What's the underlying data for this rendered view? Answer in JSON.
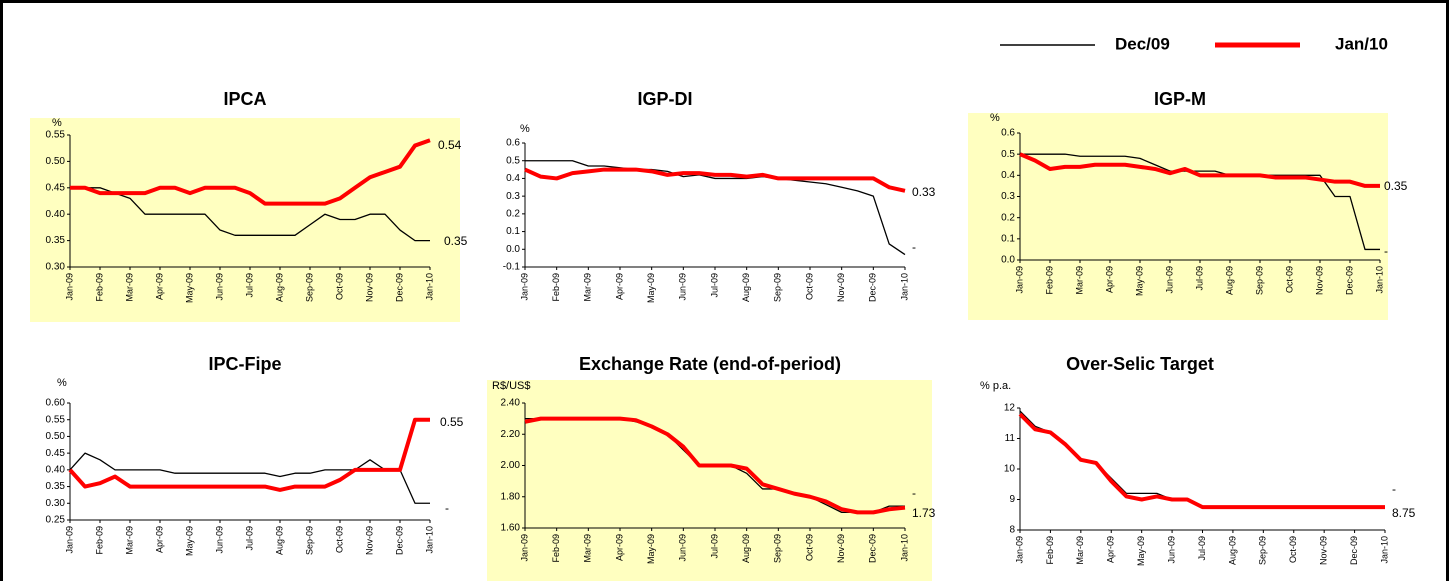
{
  "chart_data": [
    {
      "type": "line",
      "title": "IPCA",
      "y_label": "%",
      "categories": [
        "Jan-09",
        null,
        "Feb-09",
        null,
        "Mar-09",
        null,
        "Apr-09",
        null,
        "May-09",
        null,
        "Jun-09",
        null,
        "Jul-09",
        null,
        "Aug-09",
        null,
        "Sep-09",
        null,
        "Oct-09",
        null,
        "Nov-09",
        null,
        "Dec-09",
        null,
        "Jan-10"
      ],
      "series": [
        {
          "name": "Dec/09",
          "color": "#000000",
          "values": [
            0.45,
            0.45,
            0.45,
            0.44,
            0.43,
            0.4,
            0.4,
            0.4,
            0.4,
            0.4,
            0.37,
            0.36,
            0.36,
            0.36,
            0.36,
            0.36,
            0.38,
            0.4,
            0.39,
            0.39,
            0.4,
            0.4,
            0.37,
            0.35,
            0.35
          ]
        },
        {
          "name": "Jan/10",
          "color": "#ff0000",
          "values": [
            0.45,
            0.45,
            0.44,
            0.44,
            0.44,
            0.44,
            0.45,
            0.45,
            0.44,
            0.45,
            0.45,
            0.45,
            0.44,
            0.42,
            0.42,
            0.42,
            0.42,
            0.42,
            0.43,
            0.45,
            0.47,
            0.48,
            0.49,
            0.53,
            0.54
          ]
        }
      ],
      "ylim": [
        0.3,
        0.55
      ],
      "yticks": [
        {
          "value": 0.3,
          "label": "0.30"
        },
        0.35,
        {
          "value": 0.4,
          "label": "0.40"
        },
        0.45,
        {
          "value": 0.5,
          "label": "0.50"
        },
        0.55
      ],
      "annotations": [
        "0.54",
        "0.35"
      ]
    },
    {
      "type": "line",
      "title": "IGP-DI",
      "y_label": "%",
      "categories": [
        "Jan-09",
        null,
        "Feb-09",
        null,
        "Mar-09",
        null,
        "Apr-09",
        null,
        "May-09",
        null,
        "Jun-09",
        null,
        "Jul-09",
        null,
        "Aug-09",
        null,
        "Sep-09",
        null,
        "Oct-09",
        null,
        "Nov-09",
        null,
        "Dec-09",
        null,
        "Jan-10"
      ],
      "series": [
        {
          "name": "Dec/09",
          "color": "#000000",
          "values": [
            0.5,
            0.5,
            0.5,
            0.5,
            0.47,
            0.47,
            0.46,
            0.45,
            0.45,
            0.44,
            0.41,
            0.42,
            0.4,
            0.4,
            0.4,
            0.41,
            0.4,
            0.39,
            0.38,
            0.37,
            0.35,
            0.33,
            0.3,
            0.03,
            -0.03
          ]
        },
        {
          "name": "Jan/10",
          "color": "#ff0000",
          "values": [
            0.45,
            0.41,
            0.4,
            0.43,
            0.44,
            0.45,
            0.45,
            0.45,
            0.44,
            0.42,
            0.43,
            0.43,
            0.42,
            0.42,
            0.41,
            0.42,
            0.4,
            0.4,
            0.4,
            0.4,
            0.4,
            0.4,
            0.4,
            0.35,
            0.33
          ]
        }
      ],
      "ylim": [
        -0.1,
        0.6
      ],
      "yticks": [
        -0.1,
        {
          "value": 0,
          "label": "0.0"
        },
        0.1,
        0.2,
        0.3,
        0.4,
        0.5,
        0.6
      ],
      "annotations": [
        "0.33",
        "-"
      ]
    },
    {
      "type": "line",
      "title": "IGP-M",
      "y_label": "%",
      "categories": [
        "Jan-09",
        null,
        "Feb-09",
        null,
        "Mar-09",
        null,
        "Apr-09",
        null,
        "May-09",
        null,
        "Jun-09",
        null,
        "Jul-09",
        null,
        "Aug-09",
        null,
        "Sep-09",
        null,
        "Oct-09",
        null,
        "Nov-09",
        null,
        "Dec-09",
        null,
        "Jan-10"
      ],
      "series": [
        {
          "name": "Dec/09",
          "color": "#000000",
          "values": [
            0.5,
            0.5,
            0.5,
            0.5,
            0.49,
            0.49,
            0.49,
            0.49,
            0.48,
            0.45,
            0.42,
            0.42,
            0.42,
            0.42,
            0.4,
            0.4,
            0.4,
            0.4,
            0.4,
            0.4,
            0.4,
            0.3,
            0.3,
            0.05,
            0.05
          ]
        },
        {
          "name": "Jan/10",
          "color": "#ff0000",
          "values": [
            0.5,
            0.47,
            0.43,
            0.44,
            0.44,
            0.45,
            0.45,
            0.45,
            0.44,
            0.43,
            0.41,
            0.43,
            0.4,
            0.4,
            0.4,
            0.4,
            0.4,
            0.39,
            0.39,
            0.39,
            0.38,
            0.37,
            0.37,
            0.35,
            0.35
          ]
        }
      ],
      "ylim": [
        0,
        0.6
      ],
      "yticks": [
        {
          "value": 0,
          "label": "0.0"
        },
        0.1,
        0.2,
        0.3,
        0.4,
        0.5,
        0.6
      ],
      "annotations": [
        "0.35",
        "-"
      ]
    },
    {
      "type": "line",
      "title": "IPC-Fipe",
      "y_label": "%",
      "categories": [
        "Jan-09",
        null,
        "Feb-09",
        null,
        "Mar-09",
        null,
        "Apr-09",
        null,
        "May-09",
        null,
        "Jun-09",
        null,
        "Jul-09",
        null,
        "Aug-09",
        null,
        "Sep-09",
        null,
        "Oct-09",
        null,
        "Nov-09",
        null,
        "Dec-09",
        null,
        "Jan-10"
      ],
      "series": [
        {
          "name": "Dec/09",
          "color": "#000000",
          "values": [
            0.4,
            0.45,
            0.43,
            0.4,
            0.4,
            0.4,
            0.4,
            0.39,
            0.39,
            0.39,
            0.39,
            0.39,
            0.39,
            0.39,
            0.38,
            0.39,
            0.39,
            0.4,
            0.4,
            0.4,
            0.43,
            0.4,
            0.4,
            0.3,
            0.3
          ]
        },
        {
          "name": "Jan/10",
          "color": "#ff0000",
          "values": [
            0.4,
            0.35,
            0.36,
            0.38,
            0.35,
            0.35,
            0.35,
            0.35,
            0.35,
            0.35,
            0.35,
            0.35,
            0.35,
            0.35,
            0.34,
            0.35,
            0.35,
            0.35,
            0.37,
            0.4,
            0.4,
            0.4,
            0.4,
            0.55,
            0.55
          ]
        }
      ],
      "ylim": [
        0.25,
        0.6
      ],
      "yticks": [
        0.25,
        {
          "value": 0.3,
          "label": "0.30"
        },
        0.35,
        {
          "value": 0.4,
          "label": "0.40"
        },
        0.45,
        {
          "value": 0.5,
          "label": "0.50"
        },
        0.55,
        {
          "value": 0.6,
          "label": "0.60"
        }
      ],
      "annotations": [
        "0.55",
        "-"
      ]
    },
    {
      "type": "line",
      "title": "Exchange Rate (end-of-period)",
      "y_label": "R$/US$",
      "categories": [
        "Jan-09",
        null,
        "Feb-09",
        null,
        "Mar-09",
        null,
        "Apr-09",
        null,
        "May-09",
        null,
        "Jun-09",
        null,
        "Jul-09",
        null,
        "Aug-09",
        null,
        "Sep-09",
        null,
        "Oct-09",
        null,
        "Nov-09",
        null,
        "Dec-09",
        null,
        "Jan-10"
      ],
      "series": [
        {
          "name": "Dec/09",
          "color": "#000000",
          "values": [
            2.3,
            2.3,
            2.3,
            2.3,
            2.3,
            2.3,
            2.3,
            2.28,
            2.25,
            2.2,
            2.1,
            2.0,
            2.0,
            2.0,
            1.95,
            1.85,
            1.85,
            1.82,
            1.8,
            1.75,
            1.7,
            1.7,
            1.7,
            1.74,
            1.74
          ]
        },
        {
          "name": "Jan/10",
          "color": "#ff0000",
          "values": [
            2.28,
            2.3,
            2.3,
            2.3,
            2.3,
            2.3,
            2.3,
            2.29,
            2.25,
            2.2,
            2.12,
            2.0,
            2.0,
            2.0,
            1.98,
            1.88,
            1.85,
            1.82,
            1.8,
            1.77,
            1.72,
            1.7,
            1.7,
            1.72,
            1.73
          ]
        }
      ],
      "ylim": [
        1.6,
        2.4
      ],
      "yticks": [
        {
          "value": 1.6,
          "label": "1.60"
        },
        {
          "value": 1.8,
          "label": "1.80"
        },
        {
          "value": 2.0,
          "label": "2.00"
        },
        {
          "value": 2.2,
          "label": "2.20"
        },
        {
          "value": 2.4,
          "label": "2.40"
        }
      ],
      "annotations": [
        "1.73",
        "-"
      ]
    },
    {
      "type": "line",
      "title": "Over-Selic Target",
      "y_label": "% p.a.",
      "categories": [
        "Jan-09",
        null,
        "Feb-09",
        null,
        "Mar-09",
        null,
        "Apr-09",
        null,
        "May-09",
        null,
        "Jun-09",
        null,
        "Jul-09",
        null,
        "Aug-09",
        null,
        "Sep-09",
        null,
        "Oct-09",
        null,
        "Nov-09",
        null,
        "Dec-09",
        null,
        "Jan-10"
      ],
      "series": [
        {
          "name": "Dec/09",
          "color": "#000000",
          "values": [
            11.9,
            11.4,
            11.2,
            10.8,
            10.3,
            10.2,
            9.7,
            9.2,
            9.2,
            9.2,
            9.0,
            9.0,
            8.75,
            8.75,
            8.75,
            8.75,
            8.75,
            8.75,
            8.75,
            8.75,
            8.75,
            8.75,
            8.75,
            8.75,
            8.75
          ]
        },
        {
          "name": "Jan/10",
          "color": "#ff0000",
          "values": [
            11.8,
            11.3,
            11.2,
            10.8,
            10.3,
            10.2,
            9.6,
            9.1,
            9.0,
            9.1,
            9.0,
            9.0,
            8.75,
            8.75,
            8.75,
            8.75,
            8.75,
            8.75,
            8.75,
            8.75,
            8.75,
            8.75,
            8.75,
            8.75,
            8.75
          ]
        }
      ],
      "ylim": [
        8,
        12
      ],
      "yticks": [
        8,
        9,
        10,
        11,
        12
      ],
      "annotations": [
        "8.75",
        "-"
      ]
    }
  ]
}
